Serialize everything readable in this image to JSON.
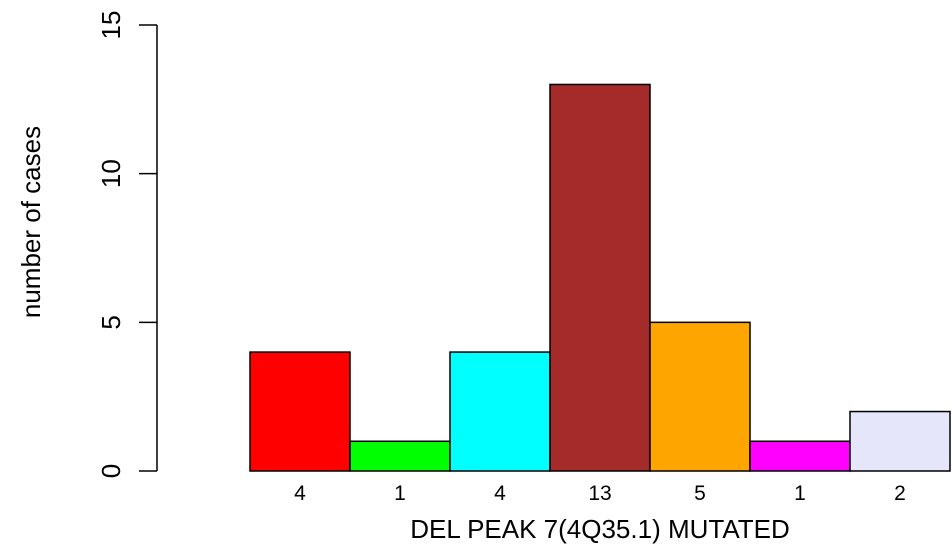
{
  "chart_data": {
    "type": "bar",
    "title": "",
    "xlabel": "DEL PEAK  7(4Q35.1) MUTATED",
    "ylabel": "number of cases",
    "ylim": [
      0,
      15
    ],
    "yticks": [
      0,
      5,
      10,
      15
    ],
    "grid": false,
    "legend": "none",
    "categories": [
      "4",
      "1",
      "4",
      "13",
      "5",
      "1",
      "2"
    ],
    "values": [
      4,
      1,
      4,
      13,
      5,
      1,
      2
    ],
    "colors": [
      "#ff0000",
      "#00ff00",
      "#00ffff",
      "#a52a2a",
      "#ffa500",
      "#ff00ff",
      "#e6e6fa"
    ]
  }
}
